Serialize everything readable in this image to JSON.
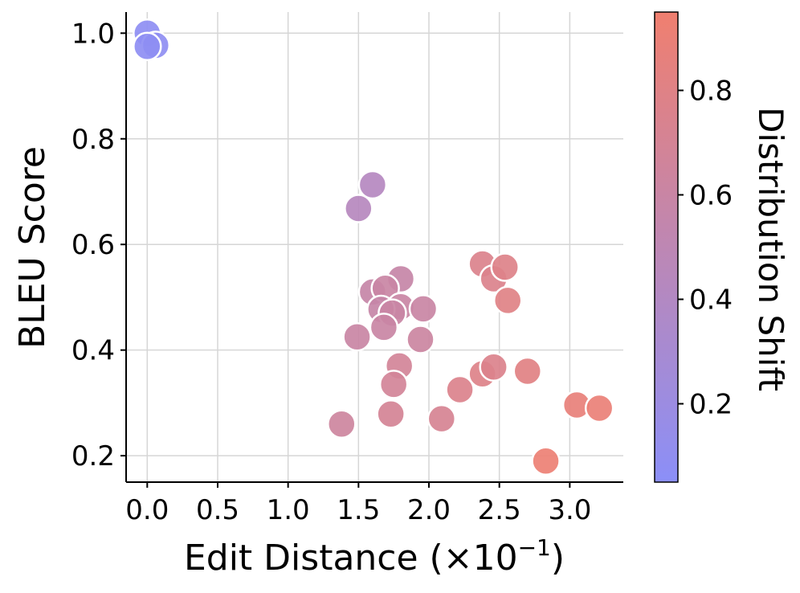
{
  "chart_data": {
    "type": "scatter",
    "xlabel": "Edit Distance (×10",
    "xlabel_exponent": "−1",
    "xlabel_suffix": ")",
    "ylabel": "BLEU Score",
    "colorbar_label": "Distribution Shift",
    "xlim": [
      -0.15,
      3.38
    ],
    "ylim": [
      0.15,
      1.04
    ],
    "color_range": [
      0.05,
      0.95
    ],
    "x_ticks": [
      0.0,
      0.5,
      1.0,
      1.5,
      2.0,
      2.5,
      3.0
    ],
    "x_tick_labels": [
      "0.0",
      "0.5",
      "1.0",
      "1.5",
      "2.0",
      "2.5",
      "3.0"
    ],
    "y_ticks": [
      0.2,
      0.4,
      0.6,
      0.8,
      1.0
    ],
    "y_tick_labels": [
      "0.2",
      "0.4",
      "0.6",
      "0.8",
      "1.0"
    ],
    "colorbar_ticks": [
      0.2,
      0.4,
      0.6,
      0.8
    ],
    "colorbar_tick_labels": [
      "0.2",
      "0.4",
      "0.6",
      "0.8"
    ],
    "colormap": [
      "#8b8ff8",
      "#f07f6f"
    ],
    "grid": true,
    "points": [
      {
        "x": 0.0,
        "y": 1.0,
        "c": 0.08
      },
      {
        "x": 0.06,
        "y": 0.977,
        "c": 0.09
      },
      {
        "x": 0.0,
        "y": 0.975,
        "c": 0.08
      },
      {
        "x": 1.6,
        "y": 0.713,
        "c": 0.42
      },
      {
        "x": 1.5,
        "y": 0.668,
        "c": 0.43
      },
      {
        "x": 1.6,
        "y": 0.51,
        "c": 0.58
      },
      {
        "x": 1.8,
        "y": 0.535,
        "c": 0.58
      },
      {
        "x": 1.69,
        "y": 0.517,
        "c": 0.6
      },
      {
        "x": 1.8,
        "y": 0.482,
        "c": 0.6
      },
      {
        "x": 1.66,
        "y": 0.477,
        "c": 0.58
      },
      {
        "x": 1.74,
        "y": 0.47,
        "c": 0.6
      },
      {
        "x": 1.96,
        "y": 0.478,
        "c": 0.6
      },
      {
        "x": 1.49,
        "y": 0.425,
        "c": 0.6
      },
      {
        "x": 1.68,
        "y": 0.443,
        "c": 0.6
      },
      {
        "x": 1.94,
        "y": 0.42,
        "c": 0.62
      },
      {
        "x": 1.79,
        "y": 0.37,
        "c": 0.68
      },
      {
        "x": 1.75,
        "y": 0.335,
        "c": 0.68
      },
      {
        "x": 1.73,
        "y": 0.279,
        "c": 0.7
      },
      {
        "x": 1.38,
        "y": 0.26,
        "c": 0.64
      },
      {
        "x": 2.09,
        "y": 0.27,
        "c": 0.72
      },
      {
        "x": 2.22,
        "y": 0.325,
        "c": 0.76
      },
      {
        "x": 2.38,
        "y": 0.355,
        "c": 0.78
      },
      {
        "x": 2.46,
        "y": 0.368,
        "c": 0.76
      },
      {
        "x": 2.38,
        "y": 0.563,
        "c": 0.76
      },
      {
        "x": 2.46,
        "y": 0.535,
        "c": 0.76
      },
      {
        "x": 2.54,
        "y": 0.557,
        "c": 0.78
      },
      {
        "x": 2.56,
        "y": 0.494,
        "c": 0.8
      },
      {
        "x": 2.7,
        "y": 0.36,
        "c": 0.82
      },
      {
        "x": 3.05,
        "y": 0.296,
        "c": 0.88
      },
      {
        "x": 3.21,
        "y": 0.29,
        "c": 0.9
      },
      {
        "x": 2.83,
        "y": 0.19,
        "c": 0.92
      }
    ]
  }
}
